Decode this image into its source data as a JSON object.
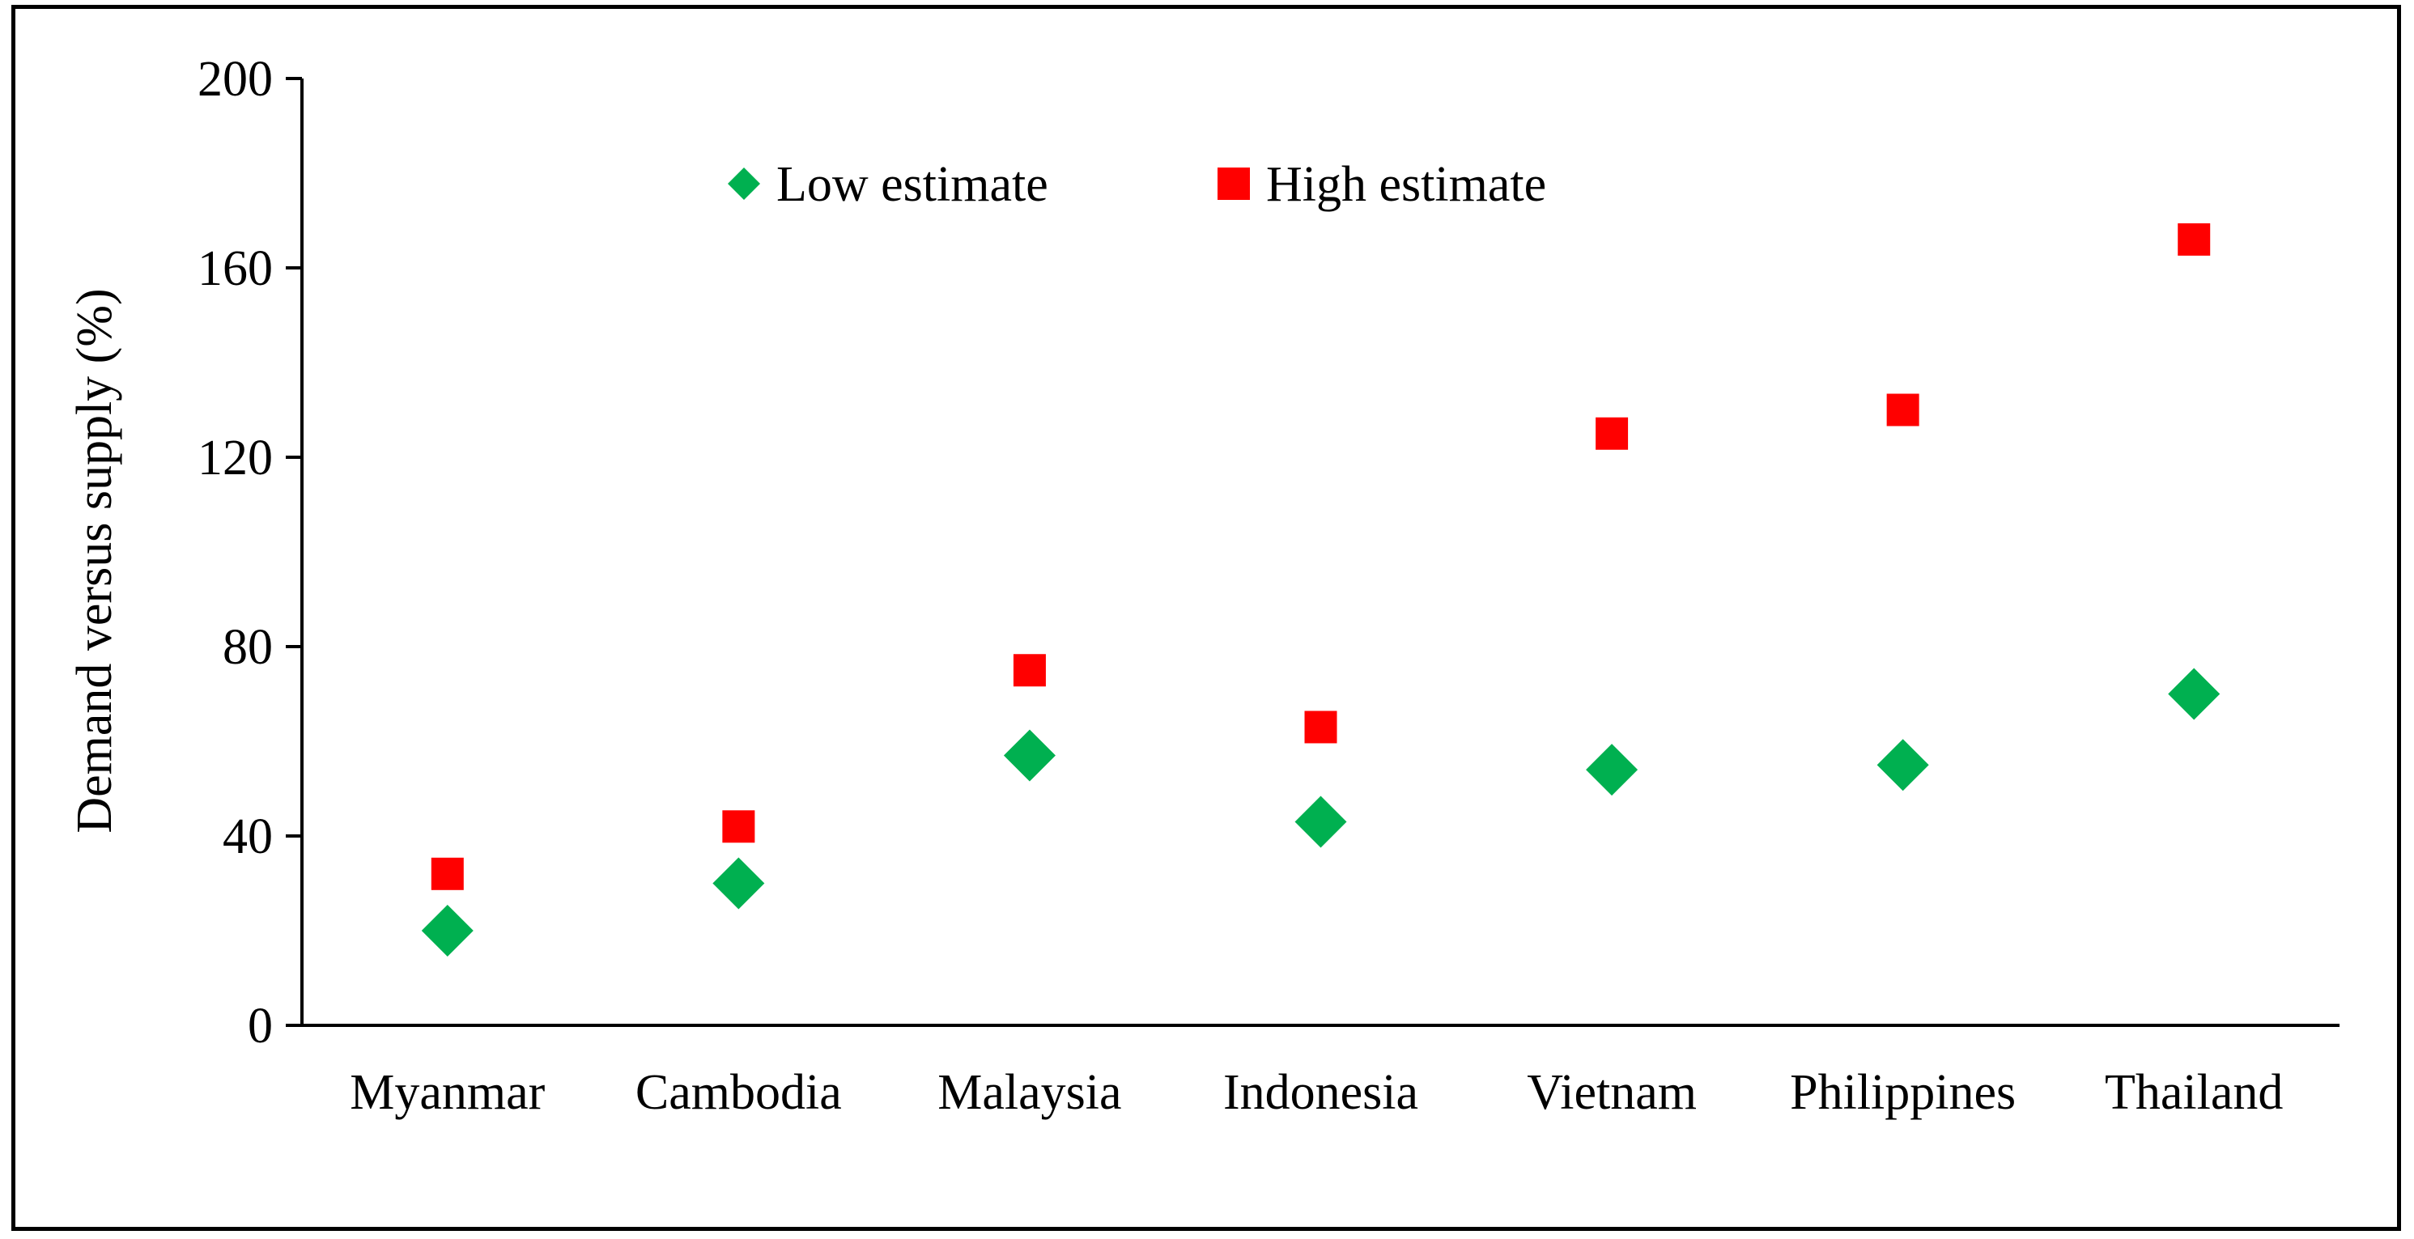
{
  "chart_data": {
    "type": "scatter",
    "title": "",
    "xlabel": "",
    "ylabel": "Demand versus supply (%)",
    "ylim": [
      0,
      200
    ],
    "yticks": [
      "0",
      "40",
      "80",
      "120",
      "160",
      "200"
    ],
    "grid": false,
    "legend_position": "top-center",
    "categories": [
      "Myanmar",
      "Cambodia",
      "Malaysia",
      "Indonesia",
      "Vietnam",
      "Philippines",
      "Thailand"
    ],
    "series": [
      {
        "name": "Low estimate",
        "marker": "diamond",
        "color": "#00B050",
        "values": [
          20,
          30,
          57,
          43,
          54,
          55,
          70
        ]
      },
      {
        "name": "High estimate",
        "marker": "square",
        "color": "#FF0000",
        "values": [
          32,
          42,
          75,
          63,
          125,
          130,
          166
        ]
      }
    ]
  }
}
